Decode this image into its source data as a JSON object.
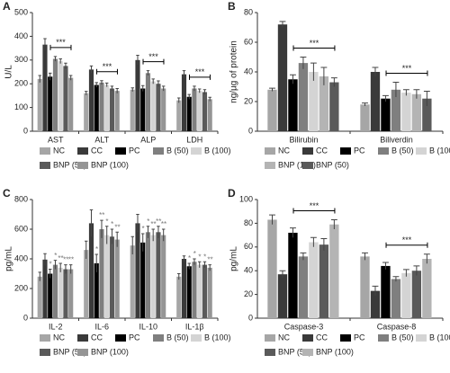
{
  "chart_data": [
    {
      "type": "bar",
      "panel": "A",
      "y_label": "U/L",
      "categories": [
        "AST",
        "ALT",
        "ALP",
        "LDH"
      ],
      "ylim": [
        0,
        500
      ],
      "yticks": [
        0,
        100,
        200,
        300,
        400,
        500
      ],
      "series": [
        {
          "name": "NC",
          "color": "#a6a6a6",
          "values": [
            220,
            160,
            175,
            130
          ],
          "errors": [
            15,
            8,
            8,
            10
          ]
        },
        {
          "name": "CC",
          "color": "#3a3a3a",
          "values": [
            365,
            260,
            300,
            240
          ],
          "errors": [
            25,
            15,
            20,
            15
          ]
        },
        {
          "name": "PC",
          "color": "#000000",
          "values": [
            230,
            195,
            180,
            145
          ],
          "errors": [
            15,
            10,
            12,
            10
          ]
        },
        {
          "name": "B (50)",
          "color": "#7f7f7f",
          "values": [
            305,
            205,
            245,
            180
          ],
          "errors": [
            10,
            8,
            10,
            10
          ]
        },
        {
          "name": "B (100)",
          "color": "#d4d4d4",
          "values": [
            295,
            195,
            210,
            170
          ],
          "errors": [
            10,
            8,
            10,
            8
          ]
        },
        {
          "name": "BNP (50)",
          "color": "#5a5a5a",
          "values": [
            275,
            180,
            200,
            165
          ],
          "errors": [
            12,
            10,
            12,
            10
          ]
        },
        {
          "name": "BNP (100)",
          "color": "#959595",
          "values": [
            225,
            170,
            180,
            135
          ],
          "errors": [
            10,
            10,
            10,
            8
          ]
        }
      ],
      "brackets": [
        "***",
        "***",
        "***",
        "***"
      ]
    },
    {
      "type": "bar",
      "panel": "B",
      "y_label": "ng/µg of protein",
      "categories": [
        "Bilirubin",
        "Biliverdin"
      ],
      "ylim": [
        0,
        80
      ],
      "yticks": [
        0,
        20,
        40,
        60,
        80
      ],
      "series": [
        {
          "name": "NC",
          "color": "#a6a6a6",
          "values": [
            28,
            18
          ],
          "errors": [
            1,
            1
          ]
        },
        {
          "name": "CC",
          "color": "#3a3a3a",
          "values": [
            72,
            40
          ],
          "errors": [
            2,
            3
          ]
        },
        {
          "name": "PC",
          "color": "#000000",
          "values": [
            35,
            22
          ],
          "errors": [
            3,
            2
          ]
        },
        {
          "name": "B (50)",
          "color": "#7f7f7f",
          "values": [
            46,
            28
          ],
          "errors": [
            4,
            5
          ]
        },
        {
          "name": "B (100)",
          "color": "#d4d4d4",
          "values": [
            40,
            26
          ],
          "errors": [
            6,
            2
          ]
        },
        {
          "name": "BNP (100)",
          "color": "#b4b4b4",
          "values": [
            37,
            25
          ],
          "errors": [
            6,
            3
          ]
        },
        {
          "name": "BNP (50)",
          "color": "#5a5a5a",
          "values": [
            33,
            22
          ],
          "errors": [
            3,
            5
          ]
        }
      ],
      "brackets": [
        "***",
        "***"
      ]
    },
    {
      "type": "bar",
      "panel": "C",
      "y_label": "pg/mL",
      "categories": [
        "IL-2",
        "IL-6",
        "IL-10",
        "IL-1β"
      ],
      "ylim": [
        0,
        800
      ],
      "yticks": [
        0,
        200,
        400,
        600,
        800
      ],
      "series": [
        {
          "name": "NC",
          "color": "#a6a6a6",
          "values": [
            280,
            460,
            490,
            280
          ],
          "errors": [
            30,
            60,
            60,
            20
          ]
        },
        {
          "name": "CC",
          "color": "#3a3a3a",
          "values": [
            395,
            640,
            640,
            400
          ],
          "errors": [
            40,
            90,
            60,
            20
          ]
        },
        {
          "name": "PC",
          "color": "#000000",
          "values": [
            300,
            370,
            510,
            350
          ],
          "errors": [
            30,
            60,
            60,
            20
          ],
          "marks": [
            "*",
            "*",
            "*",
            "*"
          ]
        },
        {
          "name": "B (50)",
          "color": "#7f7f7f",
          "values": [
            360,
            600,
            580,
            380
          ],
          "errors": [
            30,
            60,
            40,
            20
          ],
          "marks": [
            "*",
            "**",
            "*",
            "*"
          ]
        },
        {
          "name": "B (100)",
          "color": "#d4d4d4",
          "values": [
            340,
            560,
            560,
            360
          ],
          "errors": [
            30,
            60,
            40,
            20
          ],
          "marks": [
            "**",
            "*",
            "**",
            "*"
          ]
        },
        {
          "name": "BNP (50)",
          "color": "#5a5a5a",
          "values": [
            330,
            550,
            580,
            360
          ],
          "errors": [
            30,
            50,
            40,
            20
          ],
          "marks": [
            "**",
            "*",
            "**",
            "*"
          ]
        },
        {
          "name": "BNP (100)",
          "color": "#959595",
          "values": [
            330,
            530,
            560,
            340
          ],
          "errors": [
            30,
            50,
            40,
            20
          ],
          "marks": [
            "**",
            "**",
            "**",
            "**"
          ]
        }
      ]
    },
    {
      "type": "bar",
      "panel": "D",
      "y_label": "pg/mL",
      "categories": [
        "Caspase-3",
        "Caspase-8"
      ],
      "ylim": [
        0,
        100
      ],
      "yticks": [
        0,
        20,
        40,
        60,
        80,
        100
      ],
      "series": [
        {
          "name": "NC",
          "color": "#a6a6a6",
          "values": [
            83,
            52
          ],
          "errors": [
            4,
            3
          ]
        },
        {
          "name": "CC",
          "color": "#3a3a3a",
          "values": [
            37,
            23
          ],
          "errors": [
            3,
            4
          ]
        },
        {
          "name": "PC",
          "color": "#000000",
          "values": [
            72,
            44
          ],
          "errors": [
            4,
            3
          ]
        },
        {
          "name": "B (50)",
          "color": "#7f7f7f",
          "values": [
            52,
            33
          ],
          "errors": [
            3,
            2
          ]
        },
        {
          "name": "B (100)",
          "color": "#d4d4d4",
          "values": [
            64,
            38
          ],
          "errors": [
            4,
            3
          ]
        },
        {
          "name": "BNP (50)",
          "color": "#5a5a5a",
          "values": [
            62,
            40
          ],
          "errors": [
            5,
            4
          ]
        },
        {
          "name": "BNP (100)",
          "color": "#b4b4b4",
          "values": [
            79,
            50
          ],
          "errors": [
            4,
            4
          ]
        }
      ],
      "brackets": [
        "***",
        "***"
      ]
    }
  ]
}
